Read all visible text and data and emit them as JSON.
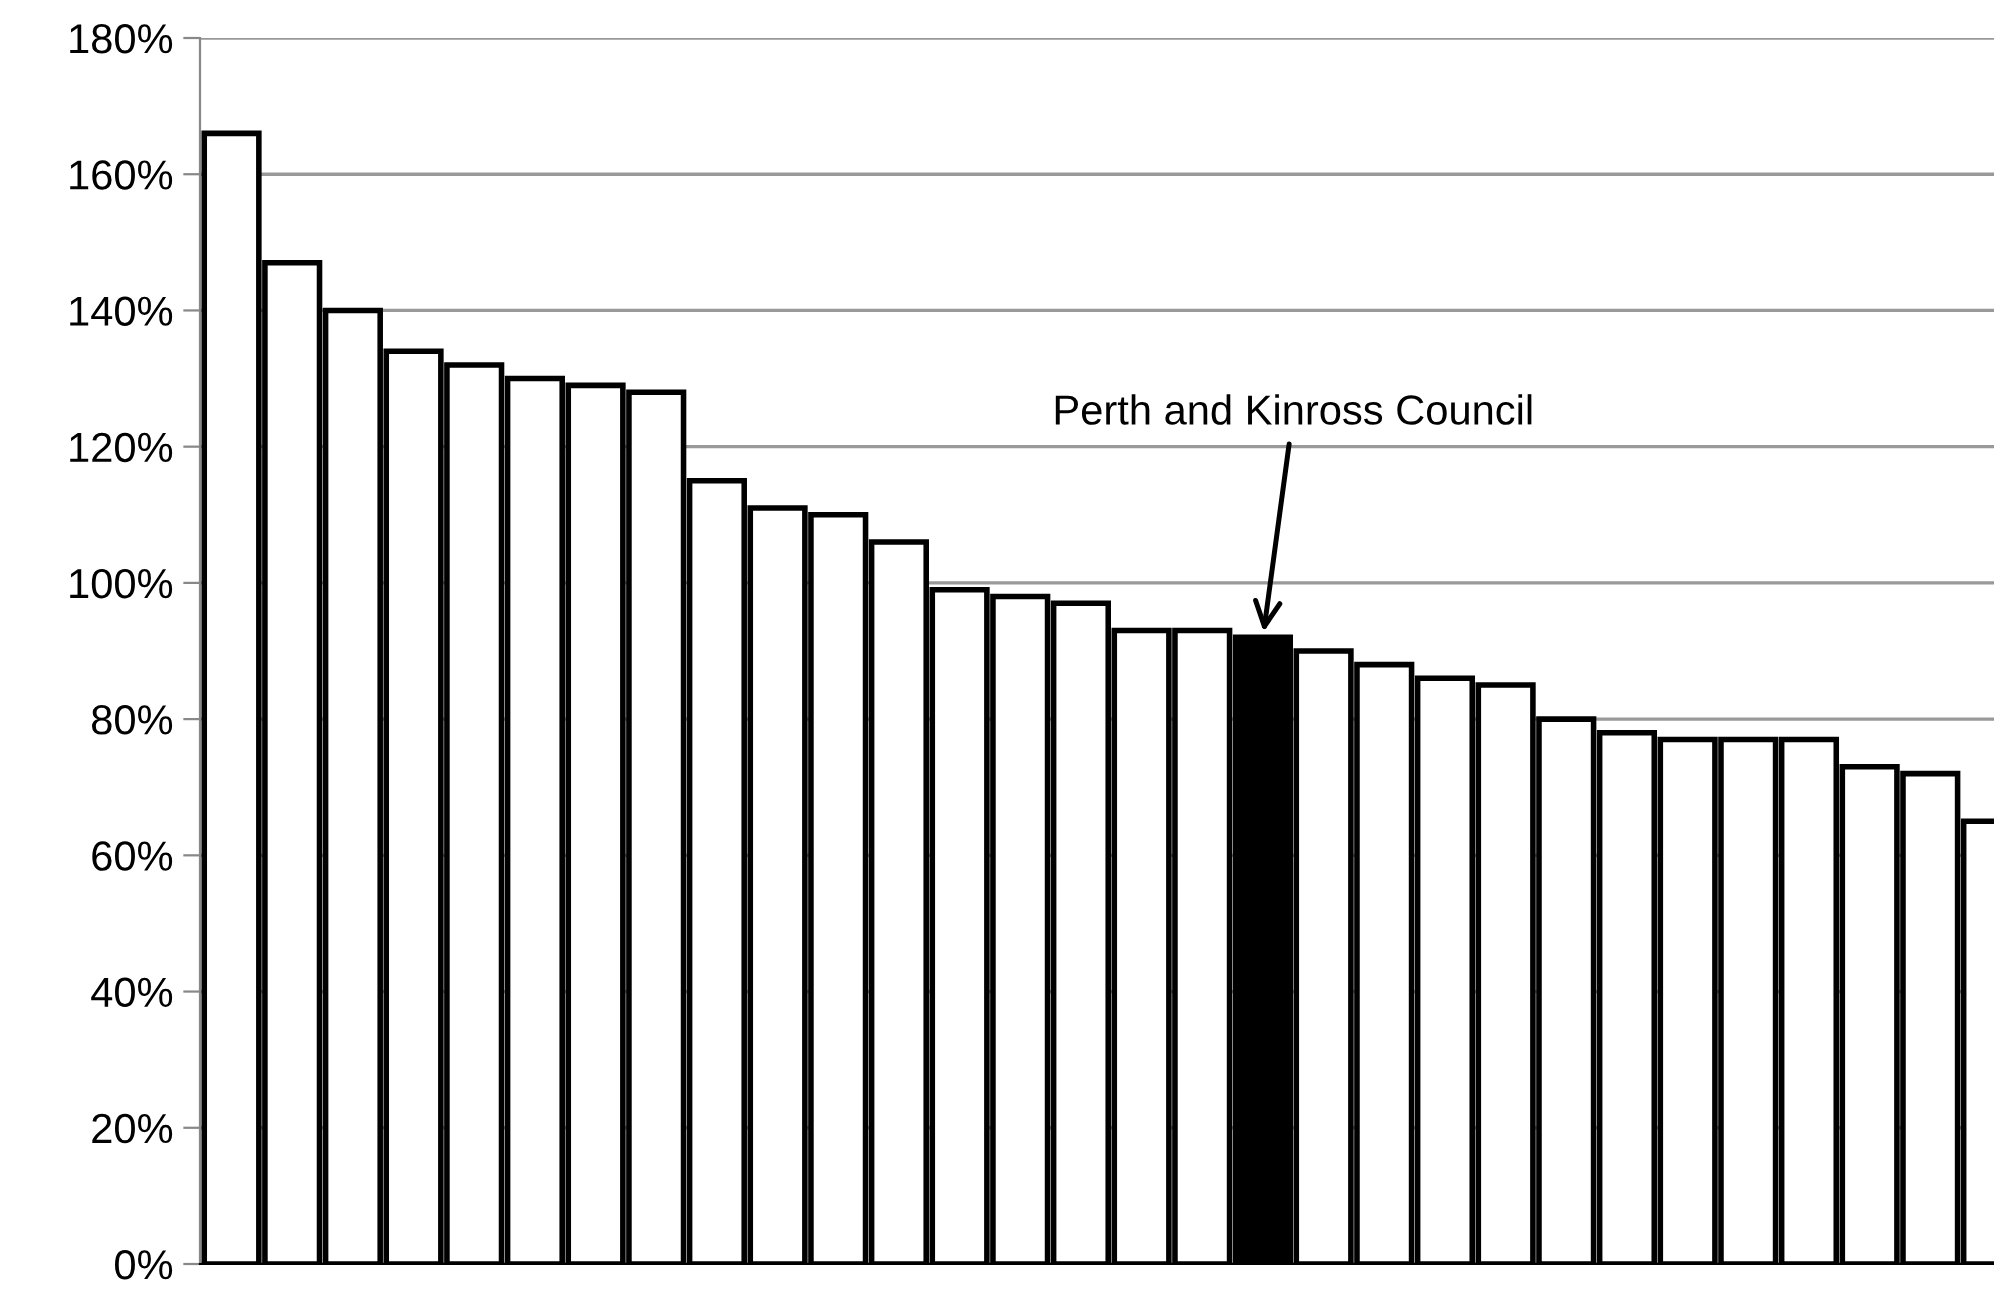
{
  "chart_data": {
    "type": "bar",
    "categories": [
      null,
      null,
      null,
      null,
      null,
      null,
      null,
      null,
      null,
      null,
      null,
      null,
      null,
      null,
      null,
      null,
      null,
      null,
      null,
      null,
      null,
      null,
      null,
      null,
      null,
      null,
      null,
      null,
      null,
      null
    ],
    "values": [
      166,
      147,
      140,
      134,
      132,
      130,
      129,
      128,
      115,
      111,
      110,
      106,
      99,
      98,
      97,
      93,
      93,
      92,
      90,
      88,
      86,
      85,
      80,
      78,
      77,
      77,
      77,
      73,
      72,
      65
    ],
    "colors": [
      "#ffffff",
      "#ffffff",
      "#ffffff",
      "#ffffff",
      "#ffffff",
      "#ffffff",
      "#ffffff",
      "#ffffff",
      "#ffffff",
      "#ffffff",
      "#ffffff",
      "#ffffff",
      "#ffffff",
      "#ffffff",
      "#ffffff",
      "#ffffff",
      "#ffffff",
      "#000000",
      "#ffffff",
      "#ffffff",
      "#ffffff",
      "#ffffff",
      "#ffffff",
      "#ffffff",
      "#ffffff",
      "#ffffff",
      "#ffffff",
      "#ffffff",
      "#ffffff",
      "#ffffff"
    ],
    "ylim": [
      0,
      180
    ],
    "yticks": [
      {
        "value": 0,
        "label": "0%"
      },
      {
        "value": 20,
        "label": "20%"
      },
      {
        "value": 40,
        "label": "40%"
      },
      {
        "value": 60,
        "label": "60%"
      },
      {
        "value": 80,
        "label": "80%"
      },
      {
        "value": 100,
        "label": "100%"
      },
      {
        "value": 120,
        "label": "120%"
      },
      {
        "value": 140,
        "label": "140%"
      },
      {
        "value": 160,
        "label": "160%"
      },
      {
        "value": 180,
        "label": "180%"
      }
    ],
    "grid": "y",
    "annotations": [
      "Perth and Kinross Council"
    ]
  }
}
